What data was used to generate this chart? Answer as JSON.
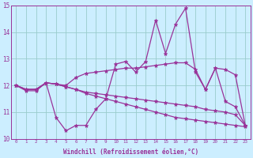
{
  "xlabel": "Windchill (Refroidissement éolien,°C)",
  "xlim": [
    -0.5,
    23.5
  ],
  "ylim": [
    10,
    15
  ],
  "yticks": [
    10,
    11,
    12,
    13,
    14,
    15
  ],
  "xticks": [
    0,
    1,
    2,
    3,
    4,
    5,
    6,
    7,
    8,
    9,
    10,
    11,
    12,
    13,
    14,
    15,
    16,
    17,
    18,
    19,
    20,
    21,
    22,
    23
  ],
  "background_color": "#cceeff",
  "grid_color": "#99cccc",
  "line_color": "#993399",
  "line_width": 0.9,
  "marker": "*",
  "marker_size": 3.5,
  "series": [
    [
      12.0,
      11.8,
      11.8,
      12.1,
      10.8,
      10.3,
      10.5,
      10.5,
      11.1,
      11.5,
      12.8,
      12.9,
      12.5,
      12.9,
      14.45,
      13.2,
      14.3,
      14.9,
      12.5,
      11.85,
      12.65,
      11.4,
      11.2,
      10.5
    ],
    [
      12.0,
      11.85,
      11.85,
      12.1,
      12.05,
      12.0,
      12.3,
      12.45,
      12.5,
      12.55,
      12.6,
      12.65,
      12.65,
      12.7,
      12.75,
      12.8,
      12.85,
      12.85,
      12.6,
      11.85,
      12.65,
      12.6,
      12.4,
      10.5
    ],
    [
      12.0,
      11.85,
      11.85,
      12.1,
      12.05,
      11.95,
      11.85,
      11.75,
      11.7,
      11.65,
      11.6,
      11.55,
      11.5,
      11.45,
      11.4,
      11.35,
      11.3,
      11.25,
      11.2,
      11.1,
      11.05,
      11.0,
      10.9,
      10.5
    ],
    [
      12.0,
      11.85,
      11.85,
      12.1,
      12.05,
      11.95,
      11.85,
      11.7,
      11.6,
      11.5,
      11.4,
      11.3,
      11.2,
      11.1,
      11.0,
      10.9,
      10.8,
      10.75,
      10.7,
      10.65,
      10.6,
      10.55,
      10.5,
      10.45
    ]
  ]
}
